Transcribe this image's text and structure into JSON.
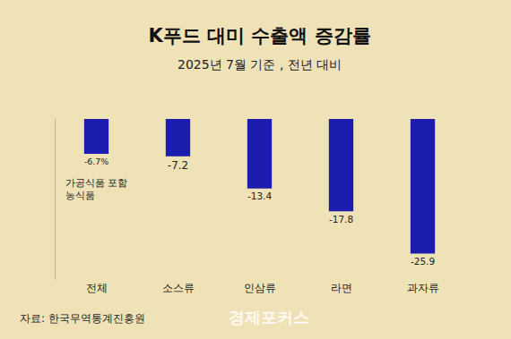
{
  "chart_data": {
    "type": "bar",
    "title": "K푸드 대미 수출액 증감률",
    "subtitle": "2025년 7월 기준 , 전년 대비",
    "categories": [
      "전체",
      "소스류",
      "인삼류",
      "라면",
      "과자류"
    ],
    "values": [
      -6.7,
      -7.2,
      -13.4,
      -17.8,
      -25.9
    ],
    "value_labels": [
      "-6.7%",
      "-7.2",
      "-13.4",
      "-17.8",
      "-25.9"
    ],
    "data_labels": true,
    "color": "#1c1cae",
    "ylim": [
      -31,
      0
    ],
    "yticks": [
      0
    ],
    "grid": false,
    "tick_labels": "x",
    "annotations": [
      {
        "category": "전체",
        "text": "가공식품 포함\n농식품"
      }
    ],
    "source": "자료: 한국무역통계진흥원",
    "logo": "경제포커스"
  }
}
